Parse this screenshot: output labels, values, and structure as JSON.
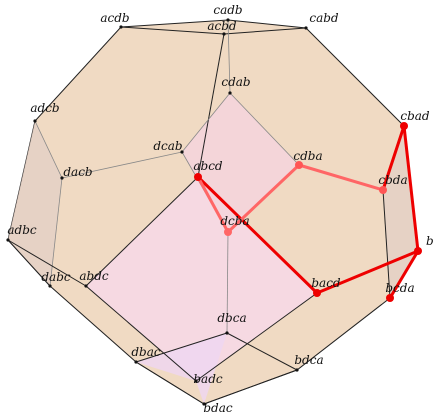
{
  "nodes": [
    {
      "label": "acdb"
    },
    {
      "label": "cadb"
    },
    {
      "label": "acbd"
    },
    {
      "label": "cabd"
    },
    {
      "label": "adcb"
    },
    {
      "label": "cbad"
    },
    {
      "label": "cdab"
    },
    {
      "label": "dcab"
    },
    {
      "label": "cdba"
    },
    {
      "label": "dacb"
    },
    {
      "label": "abcd"
    },
    {
      "label": "cbda"
    },
    {
      "label": "dcba"
    },
    {
      "label": "adbc"
    },
    {
      "label": "bcad"
    },
    {
      "label": "dabc"
    },
    {
      "label": "abdc"
    },
    {
      "label": "bacd"
    },
    {
      "label": "bcda"
    },
    {
      "label": "dbca"
    },
    {
      "label": "dbac"
    },
    {
      "label": "bdca"
    },
    {
      "label": "badc"
    },
    {
      "label": "bdac"
    }
  ]
}
